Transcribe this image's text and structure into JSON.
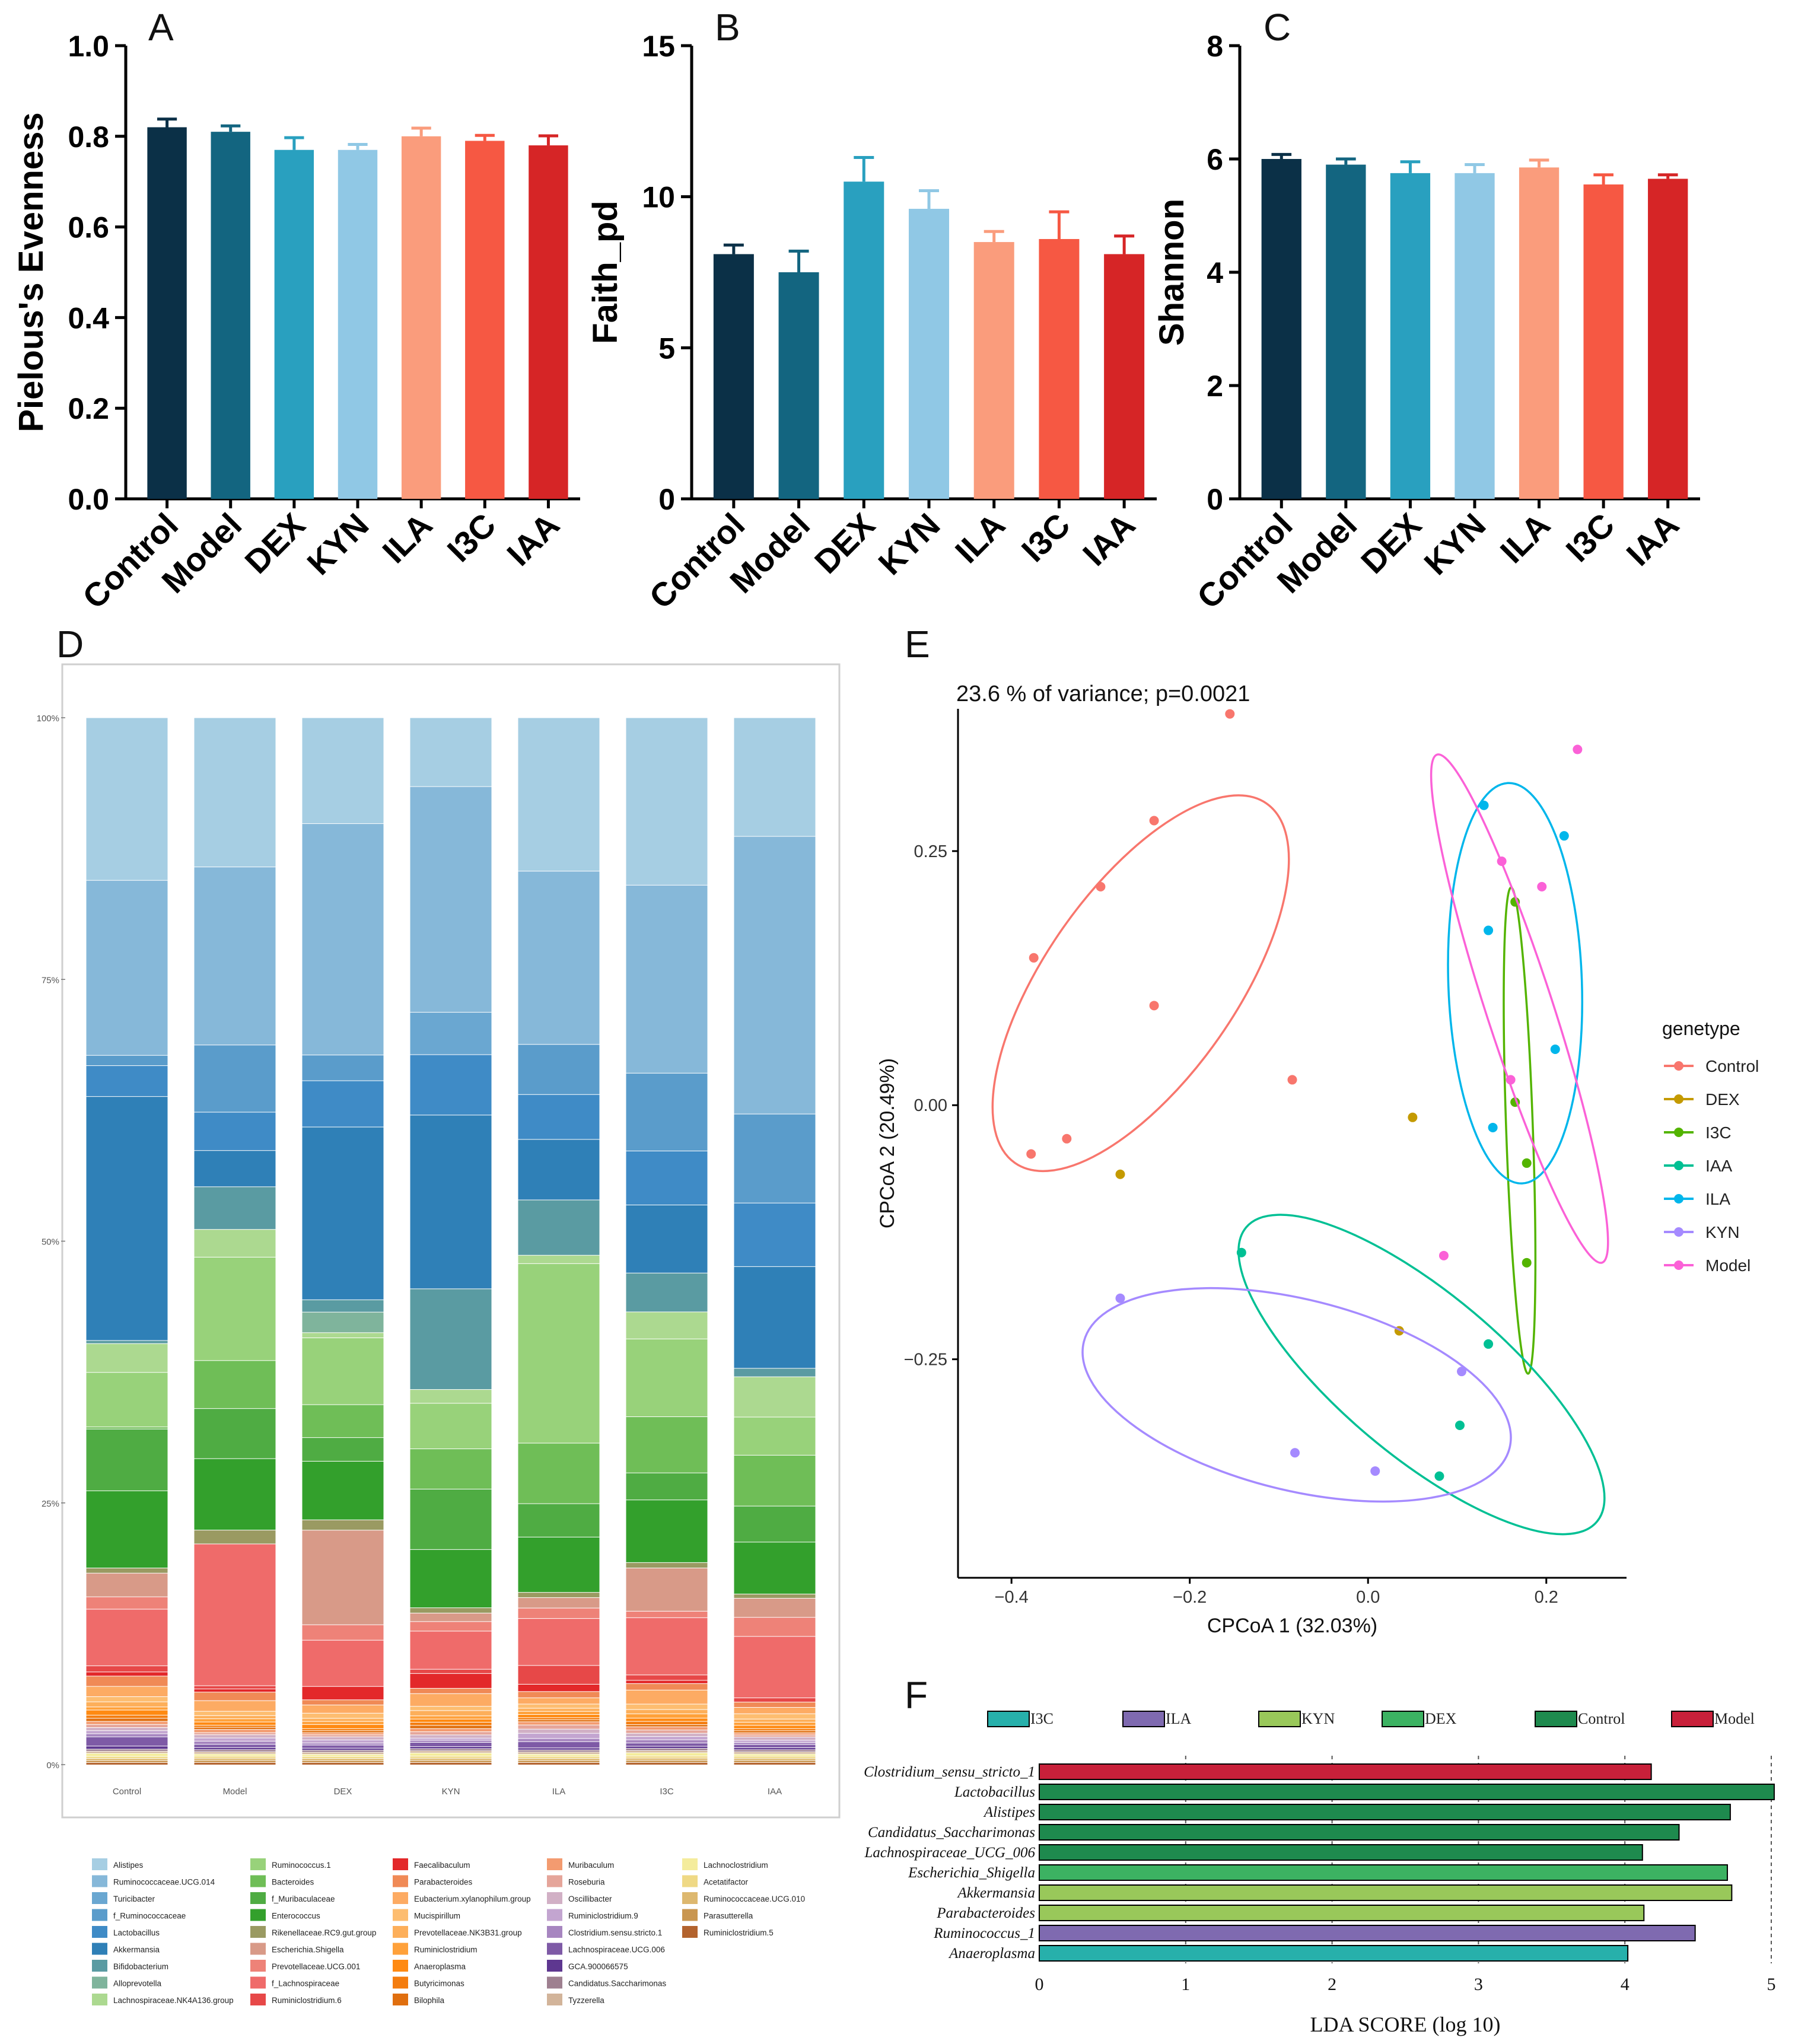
{
  "colors": {
    "Control": "#0b3047",
    "Model": "#136580",
    "DEX": "#29a0bf",
    "KYN": "#90c8e5",
    "ILA": "#fa9c7c",
    "I3C": "#f65843",
    "IAA": "#d62526"
  },
  "panel_letters": [
    "A",
    "B",
    "C",
    "D",
    "E",
    "F"
  ],
  "chart_data": [
    {
      "id": "A",
      "type": "bar",
      "categories": [
        "Control",
        "Model",
        "DEX",
        "KYN",
        "ILA",
        "I3C",
        "IAA"
      ],
      "values": [
        0.82,
        0.81,
        0.77,
        0.77,
        0.8,
        0.79,
        0.78
      ],
      "errors": [
        0.018,
        0.013,
        0.027,
        0.012,
        0.018,
        0.012,
        0.021
      ],
      "ylabel": "Pielous's Evenness",
      "ylim": [
        0,
        1.0
      ],
      "yticks": [
        "0.0",
        "0.2",
        "0.4",
        "0.6",
        "0.8",
        "1.0"
      ]
    },
    {
      "id": "B",
      "type": "bar",
      "categories": [
        "Control",
        "Model",
        "DEX",
        "KYN",
        "ILA",
        "I3C",
        "IAA"
      ],
      "values": [
        8.1,
        7.5,
        10.5,
        9.6,
        8.5,
        8.6,
        8.1
      ],
      "errors": [
        0.3,
        0.7,
        0.8,
        0.6,
        0.35,
        0.9,
        0.6
      ],
      "ylabel": "Faith_pd",
      "ylim": [
        0,
        15
      ],
      "yticks": [
        "0",
        "5",
        "10",
        "15"
      ]
    },
    {
      "id": "C",
      "type": "bar",
      "categories": [
        "Control",
        "Model",
        "DEX",
        "KYN",
        "ILA",
        "I3C",
        "IAA"
      ],
      "values": [
        6.0,
        5.9,
        5.75,
        5.75,
        5.85,
        5.55,
        5.65
      ],
      "errors": [
        0.08,
        0.1,
        0.2,
        0.15,
        0.13,
        0.17,
        0.07
      ],
      "ylabel": "Shannon",
      "ylim": [
        0,
        8
      ],
      "yticks": [
        "0",
        "2",
        "4",
        "6",
        "8"
      ]
    },
    {
      "id": "D",
      "type": "bar",
      "stacked": true,
      "categories": [
        "Control",
        "Model",
        "DEX",
        "KYN",
        "ILA",
        "I3C",
        "IAA"
      ],
      "yticks": [
        "0%",
        "25%",
        "50%",
        "75%",
        "100%"
      ],
      "ylim": [
        0,
        100
      ],
      "series": [
        {
          "name": "Alistipes",
          "color": "#a6cee3",
          "values": [
            15.8,
            14,
            10.3,
            6.5,
            14.7,
            15.5,
            11.2
          ]
        },
        {
          "name": "Ruminococcaceae.UCG.014",
          "color": "#86b8d9",
          "values": [
            17,
            16.7,
            22.5,
            21.3,
            16.6,
            17.4,
            26.2
          ]
        },
        {
          "name": "Turicibacter",
          "color": "#6aa7d1",
          "values": [
            0,
            0,
            0,
            4,
            0,
            0,
            0
          ]
        },
        {
          "name": "f_Ruminococcaceae",
          "color": "#5a9ccb",
          "values": [
            1,
            6.3,
            2.5,
            0,
            4.8,
            7.2,
            8.4
          ]
        },
        {
          "name": "Lactobacillus",
          "color": "#3f8bc6",
          "values": [
            3,
            3.6,
            4.5,
            5.7,
            4.3,
            5,
            6
          ]
        },
        {
          "name": "Akkermansia",
          "color": "#2f80b7",
          "values": [
            23.7,
            3.4,
            16.8,
            16.4,
            5.8,
            6.3,
            9.6
          ]
        },
        {
          "name": "Bifidobacterium",
          "color": "#5a9ba2",
          "values": [
            0.3,
            4,
            1.2,
            9.5,
            5.3,
            3.6,
            0.8
          ]
        },
        {
          "name": "Alloprevotella",
          "color": "#7fb49c",
          "values": [
            0,
            0,
            2,
            0,
            0,
            0,
            0
          ]
        },
        {
          "name": "Lachnospiraceae.NK4A136.group",
          "color": "#acd990",
          "values": [
            2.8,
            2.6,
            0.5,
            1.3,
            0.8,
            2.5,
            3.8
          ]
        },
        {
          "name": "Ruminococcus.1",
          "color": "#98d27a",
          "values": [
            5.3,
            9.7,
            6.5,
            4.3,
            17.2,
            7.2,
            3.6
          ]
        },
        {
          "name": "Bacteroides",
          "color": "#6fbe57",
          "values": [
            0.2,
            4.5,
            3.2,
            3.8,
            5.8,
            5.2,
            4.8
          ]
        },
        {
          "name": "f_Muribaculaceae",
          "color": "#4fac43",
          "values": [
            6,
            4.7,
            2.3,
            5.7,
            3.2,
            2.5,
            3.4
          ]
        },
        {
          "name": "Enterococcus",
          "color": "#33a02c",
          "values": [
            7.5,
            6.7,
            5.7,
            5.5,
            5.3,
            5.8,
            4.9
          ]
        },
        {
          "name": "Rikenellaceae.RC9.gut.group",
          "color": "#9a9a62",
          "values": [
            0.5,
            1.3,
            1,
            0.5,
            0.5,
            0.5,
            0.4
          ]
        },
        {
          "name": "Escherichia.Shigella",
          "color": "#d89a88",
          "values": [
            2.3,
            0,
            9.2,
            0.8,
            1,
            4,
            1.8
          ]
        },
        {
          "name": "Prevotellaceae.UCG.001",
          "color": "#ee8278",
          "values": [
            1.2,
            0,
            1.5,
            0.9,
            1,
            0.6,
            1.8
          ]
        },
        {
          "name": "f_Lachnospiraceae",
          "color": "#ef6b6a",
          "values": [
            5.5,
            13.3,
            4.5,
            3.6,
            4.5,
            5.3,
            5.8
          ]
        },
        {
          "name": "Ruminiclostridium.6",
          "color": "#e74848",
          "values": [
            0.6,
            0.3,
            0,
            0.4,
            1.8,
            0.5,
            0.4
          ]
        },
        {
          "name": "Faecalibaculum",
          "color": "#e3282a",
          "values": [
            0.4,
            0.3,
            1.3,
            1.4,
            0.7,
            0.3,
            0
          ]
        },
        {
          "name": "Parabacteroides",
          "color": "#f08a56",
          "values": [
            1,
            0.8,
            0.5,
            0.5,
            0.6,
            0.6,
            0.5
          ]
        },
        {
          "name": "Eubacterium.xylanophilum.group",
          "color": "#fdab63",
          "values": [
            1,
            1,
            0.8,
            1.2,
            0.6,
            1.3,
            0.6
          ]
        },
        {
          "name": "Mucispirillum",
          "color": "#fdbd70",
          "values": [
            0.5,
            0.4,
            0.5,
            0.4,
            0.4,
            0.5,
            0.5
          ]
        },
        {
          "name": "Prevotellaceae.NK3B31.group",
          "color": "#fdaf5a",
          "values": [
            0.5,
            0.3,
            0.3,
            0.5,
            0.3,
            0.4,
            0.3
          ]
        },
        {
          "name": "Ruminiclostridium",
          "color": "#ffa13a",
          "values": [
            0.3,
            0.3,
            0.3,
            0.3,
            0.3,
            0.4,
            0.3
          ]
        },
        {
          "name": "Anaeroplasma",
          "color": "#ff8a12",
          "values": [
            0.5,
            0.3,
            0.4,
            0.3,
            0.3,
            0.3,
            0.3
          ]
        },
        {
          "name": "Butyricimonas",
          "color": "#f47d0f",
          "values": [
            0.3,
            0.2,
            0.2,
            0.3,
            0.2,
            0.3,
            0.2
          ]
        },
        {
          "name": "Bilophila",
          "color": "#e06f0f",
          "values": [
            0.3,
            0.2,
            0.2,
            0.3,
            0.2,
            0.2,
            0.2
          ]
        },
        {
          "name": "Muribaculum",
          "color": "#f39b70",
          "values": [
            0.3,
            0.3,
            0.2,
            0.3,
            0.3,
            0.3,
            0.2
          ]
        },
        {
          "name": "Roseburia",
          "color": "#e5a59a",
          "values": [
            0.3,
            0.2,
            0.2,
            0.3,
            0.4,
            0.3,
            0.2
          ]
        },
        {
          "name": "Oscillibacter",
          "color": "#d1b0c5",
          "values": [
            0.3,
            0.3,
            0.3,
            0.3,
            0.4,
            0.3,
            0.3
          ]
        },
        {
          "name": "Ruminiclostridium.9",
          "color": "#c3a5d0",
          "values": [
            0.3,
            0.3,
            0.3,
            0.2,
            0.5,
            0.3,
            0.2
          ]
        },
        {
          "name": "Clostridium.sensu.stricto.1",
          "color": "#a786c0",
          "values": [
            0.3,
            0.3,
            0.2,
            0.2,
            0.3,
            0.3,
            0.2
          ]
        },
        {
          "name": "Lachnospiraceae.UCG.006",
          "color": "#7e5aa6",
          "values": [
            0.9,
            0.3,
            0.3,
            0.4,
            0.6,
            0.3,
            0.3
          ]
        },
        {
          "name": "GCA.900066575",
          "color": "#5e3790",
          "values": [
            0.3,
            0.2,
            0.2,
            0.2,
            0.2,
            0.2,
            0.2
          ]
        },
        {
          "name": "Candidatus.Saccharimonas",
          "color": "#9e8090",
          "values": [
            0.2,
            0.2,
            0.2,
            0.2,
            0.2,
            0.2,
            0.2
          ]
        },
        {
          "name": "Tyzzerella",
          "color": "#d2b49a",
          "values": [
            0.2,
            0.2,
            0.2,
            0.2,
            0.2,
            0.2,
            0.2
          ]
        },
        {
          "name": "Lachnoclostridium",
          "color": "#f4ec9c",
          "values": [
            0.3,
            0.2,
            0.2,
            0.3,
            0.2,
            0.3,
            0.2
          ]
        },
        {
          "name": "Acetatifactor",
          "color": "#efd985",
          "values": [
            0.2,
            0.2,
            0.2,
            0.2,
            0.2,
            0.2,
            0.2
          ]
        },
        {
          "name": "Ruminococcaceae.UCG.010",
          "color": "#ddb86f",
          "values": [
            0.2,
            0.2,
            0.2,
            0.2,
            0.2,
            0.2,
            0.2
          ]
        },
        {
          "name": "Parasutterella",
          "color": "#c99650",
          "values": [
            0.2,
            0.2,
            0.2,
            0.2,
            0.2,
            0.2,
            0.2
          ]
        },
        {
          "name": "Ruminiclostridium.5",
          "color": "#b3632e",
          "values": [
            0.2,
            0.2,
            0.2,
            0.2,
            0.2,
            0.2,
            0.2
          ]
        }
      ]
    },
    {
      "id": "E",
      "type": "scatter",
      "title": "23.6 % of variance; p=0.0021",
      "xlabel": "CPCoA 1 (32.03%)",
      "ylabel": "CPCoA 2 (20.49%)",
      "xlim": [
        -0.46,
        0.29
      ],
      "ylim": [
        -0.465,
        0.39
      ],
      "xticks": [
        -0.4,
        -0.2,
        0.0,
        0.2
      ],
      "xtick_labels": [
        "−0.4",
        "−0.2",
        "0.0",
        "0.2"
      ],
      "yticks": [
        -0.25,
        0.0,
        0.25
      ],
      "ytick_labels": [
        "−0.25",
        "0.00",
        "0.25"
      ],
      "legend_title": "genetype",
      "series": [
        {
          "name": "Control",
          "color": "#f8766d",
          "points": [
            [
              -0.155,
              0.385
            ],
            [
              -0.24,
              0.28
            ],
            [
              -0.3,
              0.215
            ],
            [
              -0.375,
              0.145
            ],
            [
              -0.24,
              0.098
            ],
            [
              -0.085,
              0.025
            ],
            [
              -0.338,
              -0.033
            ],
            [
              -0.378,
              -0.048
            ]
          ],
          "ellipse": {
            "cx": -0.255,
            "cy": 0.12,
            "rx": 0.23,
            "ry": 0.1,
            "angle": 55
          }
        },
        {
          "name": "DEX",
          "color": "#c49a00",
          "points": [
            [
              0.05,
              -0.012
            ],
            [
              -0.278,
              -0.068
            ],
            [
              0.035,
              -0.222
            ]
          ],
          "ellipse": null
        },
        {
          "name": "I3C",
          "color": "#53b400",
          "points": [
            [
              0.165,
              0.2
            ],
            [
              0.165,
              0.003
            ],
            [
              0.178,
              -0.057
            ],
            [
              0.178,
              -0.155
            ]
          ],
          "ellipse": {
            "cx": 0.17,
            "cy": -0.025,
            "rx": 0.255,
            "ry": 0.014,
            "angle": -88
          }
        },
        {
          "name": "IAA",
          "color": "#00c094",
          "points": [
            [
              -0.142,
              -0.145
            ],
            [
              0.135,
              -0.235
            ],
            [
              0.103,
              -0.315
            ],
            [
              0.08,
              -0.365
            ]
          ],
          "ellipse": {
            "cx": 0.06,
            "cy": -0.265,
            "rx": 0.24,
            "ry": 0.085,
            "angle": -40
          }
        },
        {
          "name": "ILA",
          "color": "#00b6eb",
          "points": [
            [
              0.13,
              0.295
            ],
            [
              0.22,
              0.265
            ],
            [
              0.135,
              0.172
            ],
            [
              0.21,
              0.055
            ],
            [
              0.14,
              -0.022
            ]
          ],
          "ellipse": {
            "cx": 0.165,
            "cy": 0.12,
            "rx": 0.21,
            "ry": 0.07,
            "angle": -88
          }
        },
        {
          "name": "KYN",
          "color": "#a58aff",
          "points": [
            [
              -0.278,
              -0.19
            ],
            [
              0.105,
              -0.262
            ],
            [
              -0.082,
              -0.342
            ],
            [
              0.008,
              -0.36
            ]
          ],
          "ellipse": {
            "cx": -0.08,
            "cy": -0.285,
            "rx": 0.23,
            "ry": 0.1,
            "angle": -14
          }
        },
        {
          "name": "Model",
          "color": "#fb61d7",
          "points": [
            [
              0.235,
              0.35
            ],
            [
              0.15,
              0.24
            ],
            [
              0.195,
              0.215
            ],
            [
              0.16,
              0.025
            ],
            [
              0.085,
              -0.148
            ]
          ],
          "ellipse": {
            "cx": 0.17,
            "cy": 0.095,
            "rx": 0.28,
            "ry": 0.035,
            "angle": -72
          }
        }
      ]
    },
    {
      "id": "F",
      "type": "bar",
      "orientation": "horizontal",
      "xlabel": "LDA SCORE (log 10)",
      "xlim": [
        0,
        5
      ],
      "xticks": [
        "0",
        "1",
        "2",
        "3",
        "4",
        "5"
      ],
      "legend": [
        {
          "name": "I3C",
          "color": "#27b0ab"
        },
        {
          "name": "ILA",
          "color": "#7f6ab0"
        },
        {
          "name": "KYN",
          "color": "#99c85a"
        },
        {
          "name": "DEX",
          "color": "#3cb262"
        },
        {
          "name": "Control",
          "color": "#1e8a4e"
        },
        {
          "name": "Model",
          "color": "#c8203a"
        }
      ],
      "bars": [
        {
          "label": "Clostridium_sensu_stricto_1",
          "value": 4.18,
          "group": "Model"
        },
        {
          "label": "Lactobacillus",
          "value": 5.02,
          "group": "Control"
        },
        {
          "label": "Alistipes",
          "value": 4.72,
          "group": "Control"
        },
        {
          "label": "Candidatus_Saccharimonas",
          "value": 4.37,
          "group": "Control"
        },
        {
          "label": "Lachnospiraceae_UCG_006",
          "value": 4.12,
          "group": "Control"
        },
        {
          "label": "Escherichia_Shigella",
          "value": 4.7,
          "group": "DEX"
        },
        {
          "label": "Akkermansia",
          "value": 4.73,
          "group": "KYN"
        },
        {
          "label": "Parabacteroides",
          "value": 4.13,
          "group": "KYN"
        },
        {
          "label": "Ruminococcus_1",
          "value": 4.48,
          "group": "ILA"
        },
        {
          "label": "Anaeroplasma",
          "value": 4.02,
          "group": "I3C"
        }
      ]
    }
  ]
}
